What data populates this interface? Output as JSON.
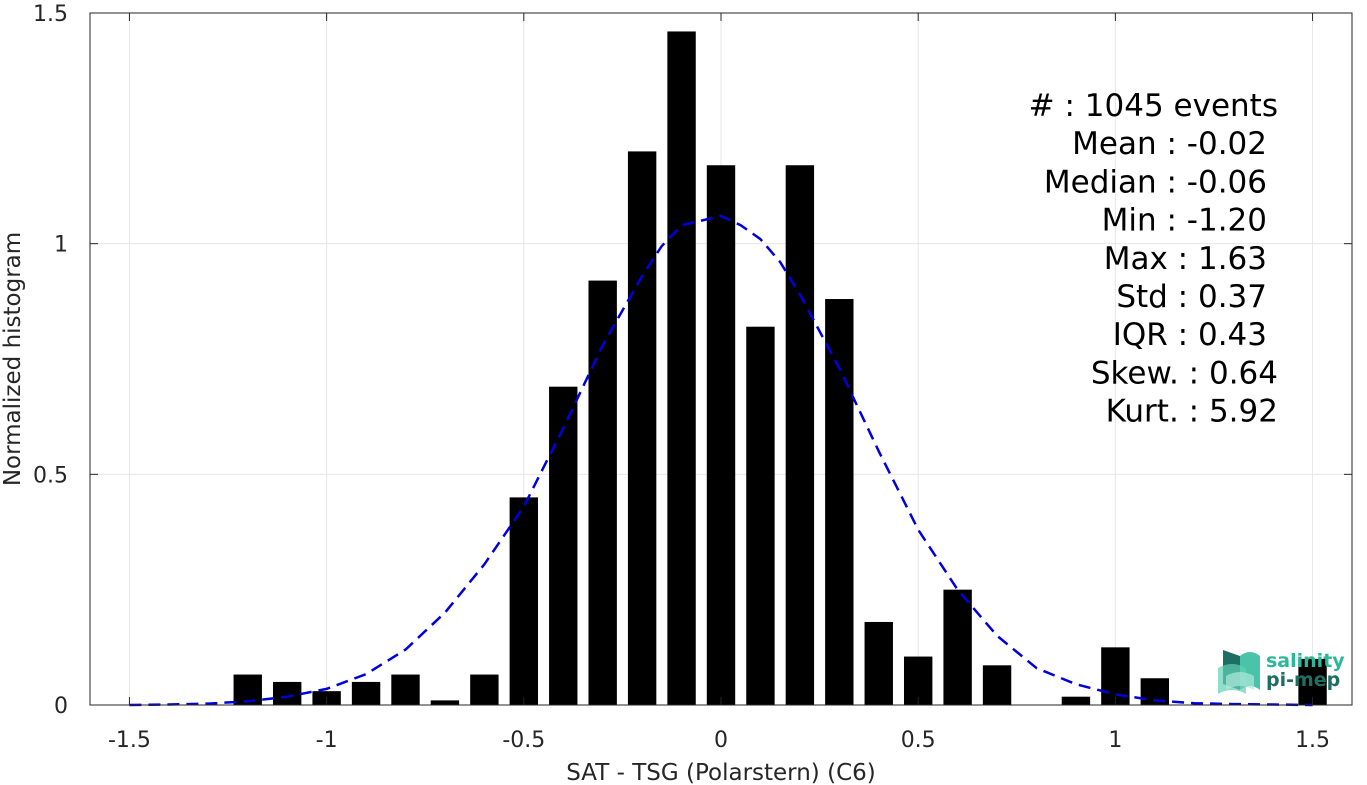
{
  "chart_data": {
    "type": "bar",
    "xlabel": "SAT - TSG (Polarstern) (C6)",
    "ylabel": "Normalized histogram",
    "xlim": [
      -1.6,
      1.6
    ],
    "ylim": [
      0,
      1.5
    ],
    "xticks": [
      -1.5,
      -1,
      -0.5,
      0,
      0.5,
      1,
      1.5
    ],
    "xtick_labels": [
      "-1.5",
      "-1",
      "-0.5",
      "0",
      "0.5",
      "1",
      "1.5"
    ],
    "yticks": [
      0,
      0.5,
      1,
      1.5
    ],
    "ytick_labels": [
      "0",
      "0.5",
      "1",
      "1.5"
    ],
    "grid": true,
    "bar_color": "#000000",
    "bar_width": 0.072,
    "bars": [
      {
        "x": -1.2,
        "y": 0.066
      },
      {
        "x": -1.1,
        "y": 0.05
      },
      {
        "x": -1.0,
        "y": 0.03
      },
      {
        "x": -0.9,
        "y": 0.05
      },
      {
        "x": -0.8,
        "y": 0.066
      },
      {
        "x": -0.7,
        "y": 0.01
      },
      {
        "x": -0.6,
        "y": 0.066
      },
      {
        "x": -0.5,
        "y": 0.45
      },
      {
        "x": -0.4,
        "y": 0.69
      },
      {
        "x": -0.3,
        "y": 0.92
      },
      {
        "x": -0.2,
        "y": 1.2
      },
      {
        "x": -0.1,
        "y": 1.46
      },
      {
        "x": 0.0,
        "y": 1.17
      },
      {
        "x": 0.1,
        "y": 0.82
      },
      {
        "x": 0.2,
        "y": 1.17
      },
      {
        "x": 0.3,
        "y": 0.88
      },
      {
        "x": 0.4,
        "y": 0.18
      },
      {
        "x": 0.5,
        "y": 0.105
      },
      {
        "x": 0.6,
        "y": 0.25
      },
      {
        "x": 0.7,
        "y": 0.086
      },
      {
        "x": 0.9,
        "y": 0.018
      },
      {
        "x": 1.0,
        "y": 0.125
      },
      {
        "x": 1.1,
        "y": 0.058
      },
      {
        "x": 1.5,
        "y": 0.1
      }
    ],
    "fit_curve": {
      "color": "#0000dd",
      "style": "dashed",
      "x": [
        -1.5,
        -1.4,
        -1.3,
        -1.2,
        -1.1,
        -1.0,
        -0.9,
        -0.8,
        -0.7,
        -0.6,
        -0.5,
        -0.4,
        -0.3,
        -0.2,
        -0.15,
        -0.1,
        -0.05,
        0.0,
        0.05,
        0.1,
        0.15,
        0.2,
        0.3,
        0.4,
        0.5,
        0.6,
        0.7,
        0.8,
        0.9,
        1.0,
        1.1,
        1.2,
        1.3,
        1.4,
        1.5
      ],
      "y": [
        0.0,
        0.001,
        0.003,
        0.008,
        0.018,
        0.035,
        0.067,
        0.12,
        0.2,
        0.305,
        0.43,
        0.6,
        0.78,
        0.93,
        0.995,
        1.04,
        1.05,
        1.06,
        1.04,
        1.01,
        0.96,
        0.89,
        0.73,
        0.55,
        0.38,
        0.25,
        0.15,
        0.08,
        0.045,
        0.023,
        0.01,
        0.004,
        0.002,
        0.001,
        0.0
      ]
    },
    "annotations": [
      "#  : 1045 events",
      "Mean : -0.02",
      "Median : -0.06",
      "Min : -1.20",
      "Max : 1.63",
      "Std : 0.37",
      "IQR : 0.43",
      "Skew. : 0.64",
      "Kurt. : 5.92"
    ]
  },
  "logo": {
    "line1": "salinity",
    "line2": "pi-mep",
    "color1": "#2bb89a",
    "color2": "#1f6e63"
  }
}
